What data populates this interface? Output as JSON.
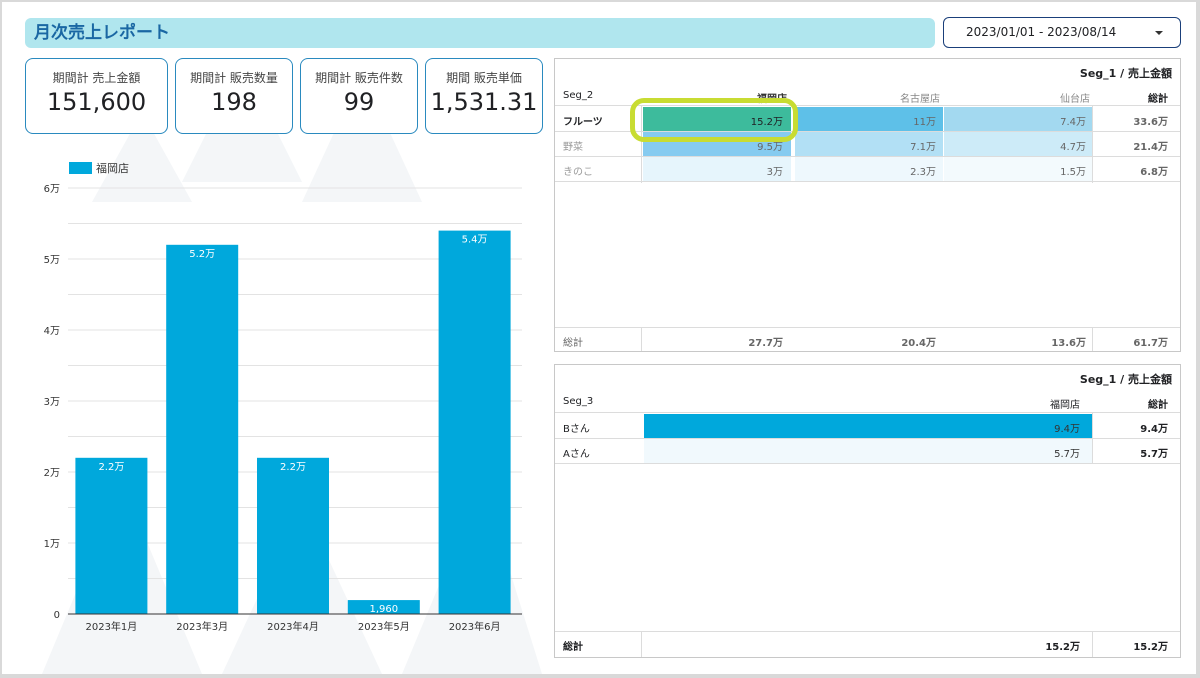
{
  "report": {
    "title": "月次売上レポート",
    "date_range": "2023/01/01 - 2023/08/14"
  },
  "kpis": [
    {
      "label": "期間計 売上金額",
      "value": "151,600"
    },
    {
      "label": "期間計 販売数量",
      "value": "198"
    },
    {
      "label": "期間計 販売件数",
      "value": "99"
    },
    {
      "label": "期間 販売単価",
      "value": "1,531.31"
    }
  ],
  "colors": {
    "bar": "#00a8dc",
    "accent": "#1a67a3",
    "highlight_ring": "#c8dc32",
    "highlight_cell": "#3dbb9c"
  },
  "chart_data": {
    "type": "bar",
    "legend": "福岡店",
    "categories": [
      "2023年1月",
      "2023年3月",
      "2023年4月",
      "2023年5月",
      "2023年6月"
    ],
    "values": [
      22000,
      52000,
      22000,
      1960,
      54000
    ],
    "value_labels": [
      "2.2万",
      "5.2万",
      "2.2万",
      "1,960",
      "5.4万"
    ],
    "y_ticks": [
      "0",
      "1万",
      "2万",
      "3万",
      "4万",
      "5万",
      "6万"
    ],
    "ylim": [
      0,
      60000
    ],
    "grid": true,
    "legend_position": "top-left"
  },
  "pivot1": {
    "caption": "Seg_1 / 売上金額",
    "row_header": "Seg_2",
    "columns": [
      "福岡店",
      "名古屋店",
      "仙台店"
    ],
    "total_header": "総計",
    "rows": [
      {
        "label": "フルーツ",
        "values": [
          "15.2万",
          "11万",
          "7.4万"
        ],
        "total": "33.6万"
      },
      {
        "label": "野菜",
        "values": [
          "9.5万",
          "7.1万",
          "4.7万"
        ],
        "total": "21.4万"
      },
      {
        "label": "きのこ",
        "values": [
          "3万",
          "2.3万",
          "1.5万"
        ],
        "total": "6.8万"
      }
    ],
    "footer": {
      "label": "総計",
      "values": [
        "27.7万",
        "20.4万",
        "13.6万"
      ],
      "total": "61.7万"
    }
  },
  "pivot2": {
    "caption": "Seg_1 / 売上金額",
    "row_header": "Seg_3",
    "column": "福岡店",
    "total_header": "総計",
    "rows": [
      {
        "label": "Bさん",
        "value": "9.4万",
        "total": "9.4万",
        "fraction": 1.0
      },
      {
        "label": "Aさん",
        "value": "5.7万",
        "total": "5.7万",
        "fraction": 0.6
      }
    ],
    "footer": {
      "label": "総計",
      "value": "15.2万",
      "total": "15.2万"
    }
  }
}
